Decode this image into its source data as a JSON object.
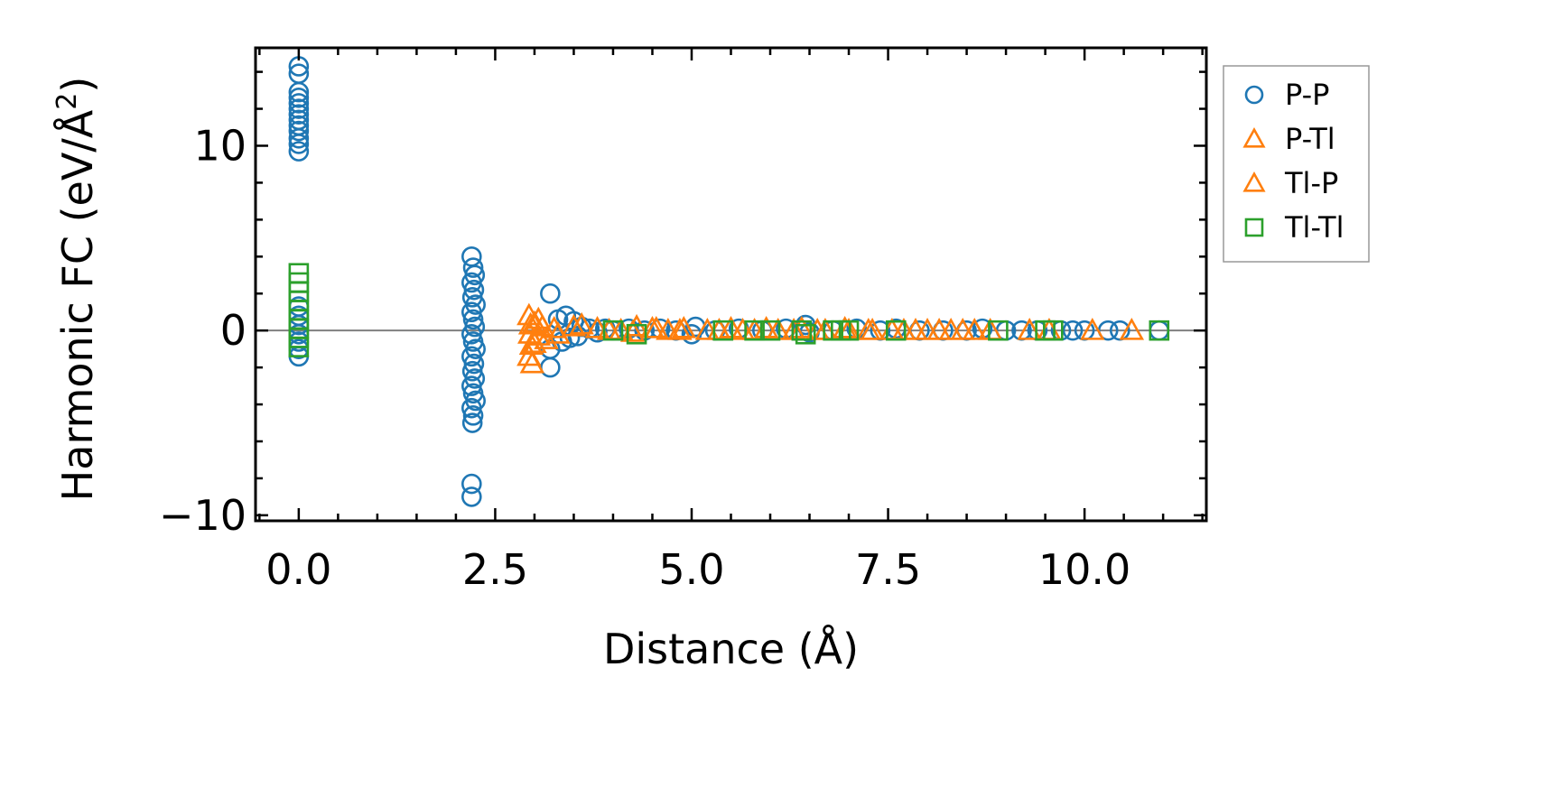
{
  "chart_data": {
    "type": "scatter",
    "xlabel": "Distance (Å)",
    "ylabel_main": "Harmonic FC (eV/Å",
    "ylabel_sup": "2",
    "ylabel_close": ")",
    "xlim": [
      -0.55,
      11.55
    ],
    "ylim": [
      -10.3,
      15.3
    ],
    "xticks": [
      0,
      2.5,
      5,
      7.5,
      10
    ],
    "xtick_labels": [
      "0.0",
      "2.5",
      "5.0",
      "7.5",
      "10.0"
    ],
    "yticks": [
      -10,
      0,
      10
    ],
    "ytick_labels": [
      "−10",
      "0",
      "10"
    ],
    "zero_line": 0,
    "series": [
      {
        "name": "P-P",
        "marker": "circle",
        "color": "#1f77b4",
        "points": [
          [
            0,
            14.3
          ],
          [
            0,
            13.9
          ],
          [
            0,
            12.9
          ],
          [
            0,
            12.6
          ],
          [
            0,
            12.3
          ],
          [
            0,
            12.0
          ],
          [
            0,
            11.7
          ],
          [
            0,
            11.4
          ],
          [
            0,
            11.1
          ],
          [
            0,
            10.8
          ],
          [
            0,
            10.4
          ],
          [
            0,
            10.1
          ],
          [
            0,
            9.7
          ],
          [
            0,
            1.3
          ],
          [
            0,
            0.8
          ],
          [
            0,
            0.3
          ],
          [
            0,
            -0.2
          ],
          [
            0,
            -0.6
          ],
          [
            0,
            -1.0
          ],
          [
            0,
            -1.4
          ],
          [
            2.2,
            4.0
          ],
          [
            2.22,
            3.4
          ],
          [
            2.24,
            3.0
          ],
          [
            2.2,
            2.6
          ],
          [
            2.23,
            2.2
          ],
          [
            2.21,
            1.8
          ],
          [
            2.25,
            1.4
          ],
          [
            2.2,
            1.0
          ],
          [
            2.22,
            0.6
          ],
          [
            2.24,
            0.2
          ],
          [
            2.2,
            -0.2
          ],
          [
            2.22,
            -0.6
          ],
          [
            2.25,
            -1.0
          ],
          [
            2.2,
            -1.4
          ],
          [
            2.23,
            -1.8
          ],
          [
            2.21,
            -2.2
          ],
          [
            2.24,
            -2.6
          ],
          [
            2.2,
            -3.0
          ],
          [
            2.22,
            -3.4
          ],
          [
            2.25,
            -3.8
          ],
          [
            2.2,
            -4.2
          ],
          [
            2.22,
            -4.6
          ],
          [
            2.21,
            -5.0
          ],
          [
            2.2,
            -8.3
          ],
          [
            2.2,
            -9.0
          ],
          [
            3.2,
            2.0
          ],
          [
            3.2,
            -1.0
          ],
          [
            3.2,
            -2.0
          ],
          [
            3.3,
            0.6
          ],
          [
            3.35,
            -0.6
          ],
          [
            3.4,
            0.8
          ],
          [
            3.45,
            -0.4
          ],
          [
            3.5,
            0.5
          ],
          [
            3.55,
            -0.3
          ],
          [
            3.6,
            0.2
          ],
          [
            3.7,
            0.1
          ],
          [
            3.8,
            -0.1
          ],
          [
            3.9,
            0.1
          ],
          [
            4.0,
            0.0
          ],
          [
            4.2,
            0.1
          ],
          [
            4.4,
            0.0
          ],
          [
            4.6,
            0.1
          ],
          [
            4.8,
            0.0
          ],
          [
            5.0,
            -0.2
          ],
          [
            5.05,
            0.2
          ],
          [
            5.3,
            0.0
          ],
          [
            5.6,
            0.1
          ],
          [
            5.9,
            0.0
          ],
          [
            6.2,
            0.1
          ],
          [
            6.45,
            0.3
          ],
          [
            6.5,
            -0.1
          ],
          [
            6.8,
            0.0
          ],
          [
            7.1,
            0.1
          ],
          [
            7.4,
            0.0
          ],
          [
            7.6,
            0.1
          ],
          [
            7.9,
            0.0
          ],
          [
            8.2,
            0.0
          ],
          [
            8.5,
            0.0
          ],
          [
            8.7,
            0.1
          ],
          [
            9.0,
            0.0
          ],
          [
            9.2,
            0.0
          ],
          [
            9.4,
            0.0
          ],
          [
            9.7,
            0.0
          ],
          [
            9.85,
            0.0
          ],
          [
            10.0,
            0.0
          ],
          [
            10.3,
            0.0
          ],
          [
            10.45,
            0.0
          ],
          [
            10.95,
            0.0
          ]
        ]
      },
      {
        "name": "P-Tl",
        "marker": "triangle",
        "color": "#ff7f0e",
        "points": [
          [
            2.93,
            0.8
          ],
          [
            2.95,
            0.3
          ],
          [
            2.94,
            -0.2
          ],
          [
            2.96,
            -0.8
          ],
          [
            2.93,
            -1.4
          ],
          [
            3.0,
            0.4
          ],
          [
            3.05,
            -0.3
          ],
          [
            3.1,
            0.2
          ],
          [
            3.15,
            -0.5
          ],
          [
            3.25,
            0.1
          ],
          [
            3.5,
            0.2
          ],
          [
            3.8,
            0.1
          ],
          [
            4.1,
            0.0
          ],
          [
            4.3,
            0.2
          ],
          [
            4.5,
            0.1
          ],
          [
            4.7,
            0.0
          ],
          [
            4.9,
            0.1
          ],
          [
            5.2,
            0.0
          ],
          [
            5.5,
            0.1
          ],
          [
            5.8,
            0.0
          ],
          [
            6.1,
            0.0
          ],
          [
            6.4,
            0.1
          ],
          [
            6.7,
            0.0
          ],
          [
            7.0,
            0.0
          ],
          [
            7.3,
            0.0
          ],
          [
            7.7,
            0.0
          ],
          [
            8.0,
            0.0
          ],
          [
            8.3,
            0.0
          ],
          [
            8.6,
            0.0
          ],
          [
            9.3,
            0.0
          ],
          [
            10.1,
            0.0
          ]
        ]
      },
      {
        "name": "Tl-P",
        "marker": "triangle",
        "color": "#ff7f0e",
        "points": [
          [
            2.97,
            -1.8
          ],
          [
            3.0,
            -0.7
          ],
          [
            3.05,
            0.6
          ],
          [
            3.3,
            -0.2
          ],
          [
            3.6,
            0.3
          ],
          [
            3.95,
            0.0
          ],
          [
            4.25,
            -0.1
          ],
          [
            4.55,
            0.1
          ],
          [
            4.85,
            0.0
          ],
          [
            5.35,
            0.0
          ],
          [
            5.65,
            0.0
          ],
          [
            5.95,
            0.1
          ],
          [
            6.3,
            0.0
          ],
          [
            6.6,
            0.0
          ],
          [
            6.95,
            0.1
          ],
          [
            7.25,
            0.0
          ],
          [
            7.55,
            0.0
          ],
          [
            7.85,
            0.0
          ],
          [
            8.15,
            0.0
          ],
          [
            8.45,
            0.0
          ],
          [
            8.8,
            0.0
          ],
          [
            9.55,
            0.0
          ],
          [
            10.6,
            0.0
          ]
        ]
      },
      {
        "name": "Tl-Tl",
        "marker": "square",
        "color": "#2ca02c",
        "points": [
          [
            0,
            3.1
          ],
          [
            0,
            2.6
          ],
          [
            0,
            2.1
          ],
          [
            0,
            1.6
          ],
          [
            0,
            1.1
          ],
          [
            0,
            0.6
          ],
          [
            0,
            0.1
          ],
          [
            0,
            -0.4
          ],
          [
            0,
            -0.9
          ],
          [
            4.0,
            0.0
          ],
          [
            4.3,
            -0.2
          ],
          [
            5.4,
            0.0
          ],
          [
            5.8,
            0.0
          ],
          [
            6.0,
            0.0
          ],
          [
            6.4,
            0.0
          ],
          [
            6.45,
            -0.2
          ],
          [
            6.8,
            0.0
          ],
          [
            6.9,
            0.0
          ],
          [
            7.0,
            0.0
          ],
          [
            7.6,
            0.0
          ],
          [
            8.9,
            0.0
          ],
          [
            9.5,
            0.0
          ],
          [
            9.6,
            0.0
          ],
          [
            10.95,
            0.0
          ]
        ]
      }
    ],
    "legend": {
      "position": "outside-right-top",
      "entries": [
        {
          "label": "P-P",
          "marker": "circle",
          "color": "#1f77b4"
        },
        {
          "label": "P-Tl",
          "marker": "triangle",
          "color": "#ff7f0e"
        },
        {
          "label": "Tl-P",
          "marker": "triangle",
          "color": "#ff7f0e"
        },
        {
          "label": "Tl-Tl",
          "marker": "square",
          "color": "#2ca02c"
        }
      ]
    }
  }
}
